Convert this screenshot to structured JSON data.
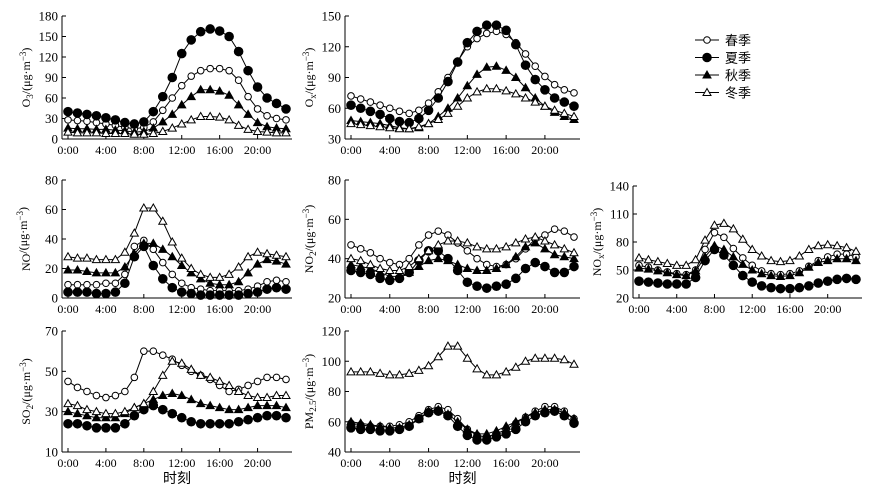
{
  "legend": {
    "items": [
      {
        "label": "春季",
        "marker": "open-circle"
      },
      {
        "label": "夏季",
        "marker": "filled-circle"
      },
      {
        "label": "秋季",
        "marker": "filled-triangle"
      },
      {
        "label": "冬季",
        "marker": "open-triangle"
      }
    ]
  },
  "x_tick_labels": [
    "0:00",
    "4:00",
    "8:00",
    "12:00",
    "16:00",
    "20:00"
  ],
  "xlabel": "时刻",
  "chart_data": [
    {
      "type": "line",
      "id": "o3",
      "title": "",
      "ylabel_main": "O",
      "ylabel_sub": "3",
      "ylabel_unit": "/(μg·m",
      "ylabel_sup": "−3",
      "ylabel_close": ")",
      "xlabel": "",
      "x_range": [
        0,
        23
      ],
      "ylim": [
        0,
        180
      ],
      "y_ticks": [
        0,
        30,
        60,
        90,
        120,
        150,
        180
      ],
      "series": [
        {
          "name": "春季",
          "values": [
            28,
            27,
            26,
            24,
            22,
            20,
            17,
            15,
            17,
            25,
            42,
            60,
            78,
            92,
            100,
            103,
            103,
            100,
            86,
            62,
            44,
            34,
            30,
            28
          ]
        },
        {
          "name": "夏季",
          "values": [
            40,
            38,
            36,
            34,
            31,
            28,
            24,
            22,
            25,
            40,
            62,
            90,
            125,
            145,
            157,
            161,
            158,
            150,
            128,
            100,
            76,
            60,
            52,
            44
          ]
        },
        {
          "name": "秋季",
          "values": [
            16,
            15,
            15,
            14,
            14,
            13,
            12,
            10,
            11,
            16,
            25,
            36,
            50,
            62,
            72,
            72,
            70,
            64,
            50,
            36,
            24,
            18,
            16,
            15
          ]
        },
        {
          "name": "冬季",
          "values": [
            10,
            9,
            9,
            9,
            8,
            8,
            8,
            7,
            7,
            8,
            11,
            16,
            22,
            28,
            33,
            33,
            32,
            28,
            20,
            14,
            11,
            10,
            9,
            9
          ]
        }
      ]
    },
    {
      "type": "line",
      "id": "ox",
      "title": "",
      "ylabel_main": "O",
      "ylabel_sub": "x",
      "ylabel_unit": "/(μg·m",
      "ylabel_sup": "−3",
      "ylabel_close": ")",
      "xlabel": "",
      "x_range": [
        0,
        23
      ],
      "ylim": [
        30,
        150
      ],
      "y_ticks": [
        30,
        60,
        90,
        120,
        150
      ],
      "series": [
        {
          "name": "春季",
          "values": [
            72,
            69,
            66,
            63,
            60,
            57,
            55,
            58,
            65,
            76,
            90,
            106,
            120,
            128,
            133,
            135,
            132,
            124,
            113,
            101,
            91,
            83,
            78,
            75
          ]
        },
        {
          "name": "夏季",
          "values": [
            63,
            60,
            57,
            54,
            50,
            47,
            46,
            50,
            58,
            70,
            86,
            105,
            124,
            135,
            141,
            141,
            136,
            122,
            102,
            88,
            78,
            70,
            66,
            62
          ]
        },
        {
          "name": "秋季",
          "values": [
            48,
            47,
            46,
            45,
            43,
            41,
            40,
            41,
            45,
            52,
            60,
            70,
            82,
            93,
            100,
            101,
            97,
            90,
            80,
            70,
            62,
            56,
            52,
            49
          ]
        },
        {
          "name": "冬季",
          "values": [
            45,
            44,
            43,
            42,
            41,
            40,
            40,
            42,
            45,
            49,
            55,
            62,
            70,
            76,
            79,
            79,
            77,
            74,
            70,
            66,
            62,
            58,
            55,
            52
          ]
        }
      ]
    },
    {
      "type": "line",
      "id": "no",
      "title": "",
      "ylabel_main": "NO",
      "ylabel_sub": "",
      "ylabel_unit": "/(μg·m",
      "ylabel_sup": "−3",
      "ylabel_close": ")",
      "xlabel": "",
      "x_range": [
        0,
        23
      ],
      "ylim": [
        0,
        80
      ],
      "y_ticks": [
        0,
        20,
        40,
        60,
        80
      ],
      "series": [
        {
          "name": "春季",
          "values": [
            9,
            9,
            9,
            9,
            10,
            10,
            16,
            35,
            39,
            33,
            24,
            16,
            10,
            7,
            6,
            5,
            5,
            5,
            5,
            6,
            8,
            11,
            12,
            11
          ]
        },
        {
          "name": "夏季",
          "values": [
            4,
            4,
            4,
            3,
            3,
            4,
            10,
            28,
            35,
            22,
            13,
            7,
            4,
            3,
            2,
            2,
            2,
            2,
            2,
            3,
            4,
            6,
            7,
            6
          ]
        },
        {
          "name": "秋季",
          "values": [
            19,
            19,
            18,
            17,
            17,
            17,
            21,
            30,
            37,
            37,
            33,
            28,
            22,
            17,
            13,
            10,
            9,
            9,
            11,
            17,
            23,
            26,
            25,
            23
          ]
        },
        {
          "name": "冬季",
          "values": [
            28,
            27,
            27,
            26,
            26,
            26,
            31,
            44,
            61,
            61,
            52,
            38,
            27,
            20,
            16,
            14,
            14,
            16,
            21,
            28,
            31,
            30,
            29,
            28
          ]
        }
      ]
    },
    {
      "type": "line",
      "id": "no2",
      "title": "",
      "ylabel_main": "NO",
      "ylabel_sub": "2",
      "ylabel_unit": "/(μg·m",
      "ylabel_sup": "−3",
      "ylabel_close": ")",
      "xlabel": "",
      "x_range": [
        0,
        23
      ],
      "ylim": [
        20,
        80
      ],
      "y_ticks": [
        20,
        40,
        60,
        80
      ],
      "series": [
        {
          "name": "春季",
          "values": [
            47,
            45,
            43,
            40,
            38,
            37,
            40,
            47,
            52,
            54,
            52,
            48,
            44,
            40,
            37,
            36,
            37,
            40,
            45,
            50,
            52,
            55,
            54,
            51
          ]
        },
        {
          "name": "夏季",
          "values": [
            34,
            33,
            32,
            30,
            29,
            30,
            33,
            39,
            44,
            44,
            40,
            34,
            28,
            26,
            25,
            26,
            27,
            30,
            35,
            38,
            36,
            33,
            33,
            36
          ]
        },
        {
          "name": "秋季",
          "values": [
            37,
            36,
            35,
            33,
            31,
            31,
            33,
            36,
            39,
            40,
            39,
            37,
            35,
            34,
            34,
            35,
            37,
            41,
            46,
            48,
            45,
            42,
            41,
            40
          ]
        },
        {
          "name": "冬季",
          "values": [
            40,
            39,
            37,
            35,
            34,
            34,
            36,
            40,
            44,
            47,
            49,
            49,
            48,
            46,
            45,
            45,
            46,
            48,
            50,
            51,
            49,
            47,
            45,
            43
          ]
        }
      ]
    },
    {
      "type": "line",
      "id": "nox",
      "title": "",
      "ylabel_main": "NO",
      "ylabel_sub": "x",
      "ylabel_unit": "/(μg·m",
      "ylabel_sup": "−3",
      "ylabel_close": ")",
      "xlabel": "",
      "x_range": [
        0,
        23
      ],
      "ylim": [
        20,
        140
      ],
      "y_ticks": [
        20,
        50,
        80,
        110,
        140
      ],
      "series": [
        {
          "name": "春季",
          "values": [
            55,
            53,
            50,
            48,
            46,
            45,
            50,
            72,
            90,
            85,
            73,
            63,
            55,
            49,
            46,
            45,
            46,
            49,
            54,
            60,
            64,
            67,
            67,
            64
          ]
        },
        {
          "name": "夏季",
          "values": [
            38,
            37,
            36,
            35,
            35,
            35,
            42,
            60,
            72,
            66,
            55,
            44,
            37,
            33,
            31,
            30,
            30,
            31,
            33,
            36,
            38,
            40,
            41,
            40
          ]
        },
        {
          "name": "秋季",
          "values": [
            52,
            51,
            49,
            47,
            45,
            44,
            49,
            64,
            76,
            72,
            64,
            56,
            50,
            46,
            44,
            43,
            44,
            47,
            53,
            58,
            60,
            62,
            62,
            60
          ]
        },
        {
          "name": "冬季",
          "values": [
            63,
            61,
            59,
            57,
            55,
            55,
            61,
            82,
            98,
            100,
            94,
            83,
            72,
            65,
            60,
            59,
            60,
            65,
            72,
            76,
            77,
            76,
            74,
            70
          ]
        }
      ]
    },
    {
      "type": "line",
      "id": "so2",
      "title": "",
      "ylabel_main": "SO",
      "ylabel_sub": "2",
      "ylabel_unit": "/(μg·m",
      "ylabel_sup": "−3",
      "ylabel_close": ")",
      "xlabel": "时刻",
      "x_range": [
        0,
        23
      ],
      "ylim": [
        10,
        70
      ],
      "y_ticks": [
        10,
        30,
        50,
        70
      ],
      "series": [
        {
          "name": "春季",
          "values": [
            45,
            42,
            40,
            38,
            37,
            38,
            40,
            47,
            60,
            60,
            58,
            56,
            53,
            50,
            48,
            46,
            43,
            40,
            41,
            43,
            45,
            47,
            47,
            46
          ]
        },
        {
          "name": "夏季",
          "values": [
            24,
            24,
            23,
            22,
            22,
            22,
            24,
            28,
            31,
            33,
            31,
            29,
            27,
            25,
            24,
            24,
            24,
            24,
            25,
            26,
            27,
            28,
            28,
            27
          ]
        },
        {
          "name": "秋季",
          "values": [
            30,
            29,
            28,
            27,
            27,
            27,
            29,
            32,
            34,
            36,
            38,
            39,
            38,
            36,
            34,
            33,
            32,
            31,
            31,
            32,
            33,
            33,
            33,
            32
          ]
        },
        {
          "name": "冬季",
          "values": [
            34,
            33,
            31,
            30,
            29,
            29,
            30,
            32,
            34,
            40,
            48,
            55,
            54,
            51,
            48,
            47,
            45,
            43,
            40,
            38,
            37,
            37,
            38,
            38
          ]
        }
      ]
    },
    {
      "type": "line",
      "id": "pm25",
      "title": "",
      "ylabel_main": "PM",
      "ylabel_sub": "2.5",
      "ylabel_unit": "/(μg·m",
      "ylabel_sup": "−3",
      "ylabel_close": ")",
      "xlabel": "时刻",
      "x_range": [
        0,
        23
      ],
      "ylim": [
        40,
        120
      ],
      "y_ticks": [
        40,
        60,
        80,
        100,
        120
      ],
      "series": [
        {
          "name": "春季",
          "values": [
            59,
            58,
            57,
            57,
            57,
            58,
            60,
            64,
            68,
            70,
            68,
            62,
            55,
            51,
            50,
            52,
            55,
            59,
            63,
            67,
            70,
            70,
            67,
            62
          ]
        },
        {
          "name": "夏季",
          "values": [
            56,
            55,
            55,
            54,
            54,
            55,
            57,
            62,
            66,
            67,
            64,
            57,
            51,
            48,
            48,
            50,
            52,
            55,
            60,
            64,
            66,
            67,
            64,
            59
          ]
        },
        {
          "name": "秋季",
          "values": [
            60,
            59,
            58,
            57,
            56,
            56,
            58,
            62,
            67,
            68,
            65,
            60,
            55,
            52,
            52,
            54,
            57,
            60,
            63,
            66,
            68,
            68,
            66,
            62
          ]
        },
        {
          "name": "冬季",
          "values": [
            93,
            93,
            93,
            92,
            91,
            91,
            92,
            94,
            97,
            103,
            110,
            110,
            102,
            95,
            91,
            91,
            93,
            96,
            100,
            102,
            102,
            102,
            101,
            98
          ]
        }
      ]
    }
  ]
}
